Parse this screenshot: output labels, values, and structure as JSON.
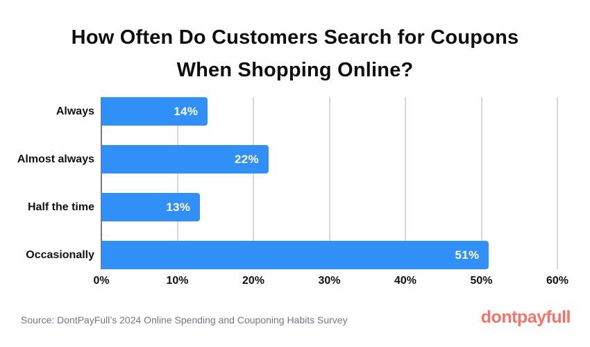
{
  "title": {
    "line1": "How Often Do Customers Search for Coupons",
    "line2": "When Shopping Online?"
  },
  "chart_data": {
    "type": "bar",
    "orientation": "horizontal",
    "title": "How Often Do Customers Search for Coupons When Shopping Online?",
    "categories": [
      "Always",
      "Almost always",
      "Half the time",
      "Occasionally"
    ],
    "values": [
      14,
      22,
      13,
      51
    ],
    "value_labels": [
      "14%",
      "22%",
      "13%",
      "51%"
    ],
    "xlabel": "",
    "ylabel": "",
    "xlim": [
      0,
      60
    ],
    "x_ticks": [
      "0%",
      "10%",
      "20%",
      "30%",
      "40%",
      "50%",
      "60%"
    ],
    "grid": true,
    "legend": false,
    "bar_color": "#3090f7"
  },
  "footer": {
    "source": "Source: DontPayFull’s 2024 Online Spending and Couponing Habits Survey",
    "logo_text": "dontpayfull"
  },
  "colors": {
    "bar": "#3090f7",
    "bar_value_text": "#ffffff",
    "title_text": "#0e0e0e",
    "axis_line": "#7a7a7a",
    "gridline": "#d8d8d8",
    "source_text": "#6f7787",
    "logo": "#f97266"
  }
}
